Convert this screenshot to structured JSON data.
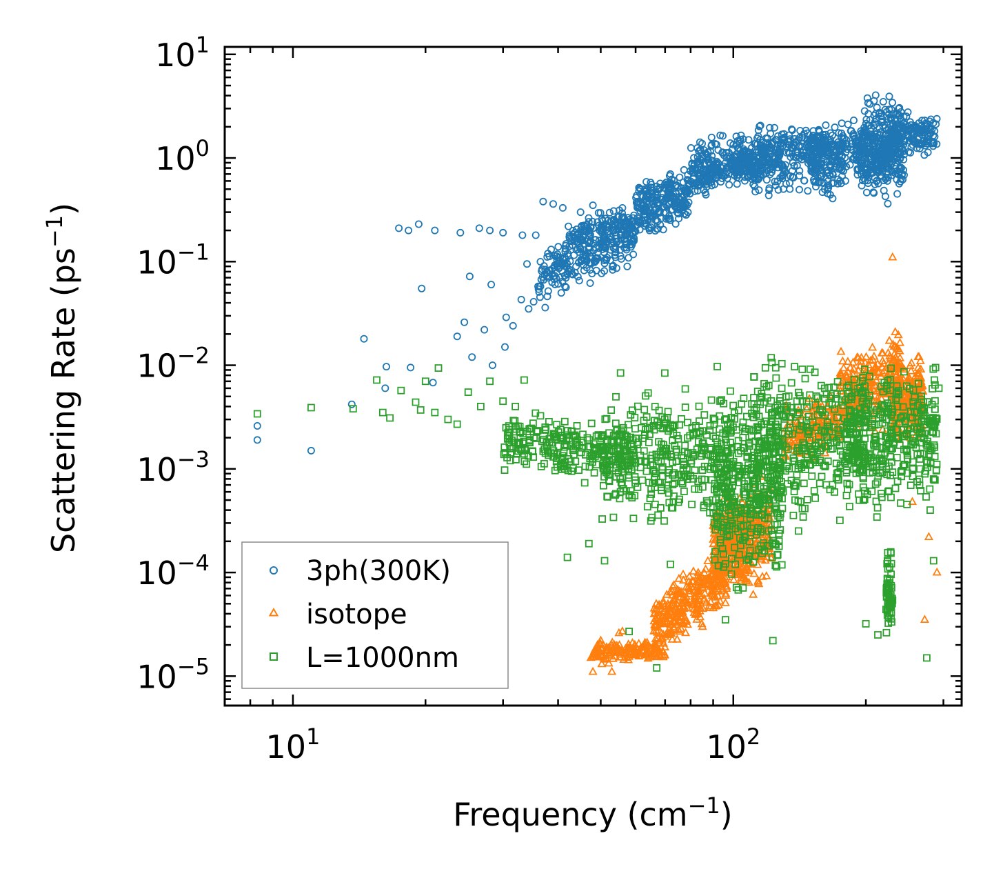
{
  "chart_data": {
    "type": "scatter",
    "title": "",
    "xlabel": "Frequency (cm",
    "xlabel_sup": "−1",
    "xlabel_end": ")",
    "ylabel": "Scattering Rate (ps",
    "ylabel_sup": "−1",
    "ylabel_end": ")",
    "xscale": "log",
    "yscale": "log",
    "xlim": [
      7.0,
      330.0
    ],
    "ylim": [
      5.2e-06,
      11.8
    ],
    "x_ticks": [
      {
        "base": "10",
        "exp": "1",
        "value": 10
      },
      {
        "base": "10",
        "exp": "2",
        "value": 100
      }
    ],
    "y_ticks": [
      {
        "base": "10",
        "exp": "1",
        "value": 10
      },
      {
        "base": "10",
        "exp": "0",
        "value": 1
      },
      {
        "base": "10",
        "exp": "−1",
        "value": 0.1
      },
      {
        "base": "10",
        "exp": "−2",
        "value": 0.01
      },
      {
        "base": "10",
        "exp": "−3",
        "value": 0.001
      },
      {
        "base": "10",
        "exp": "−4",
        "value": 0.0001
      },
      {
        "base": "10",
        "exp": "−5",
        "value": 1e-05
      }
    ],
    "legend_position": "bottom-left",
    "series": [
      {
        "name": "3ph(300K)",
        "marker": "circle",
        "color": "#1f77b4",
        "points": [
          [
            8.3,
            0.0019
          ],
          [
            8.3,
            0.0026
          ],
          [
            11.0,
            0.0015
          ],
          [
            13.6,
            0.0042
          ],
          [
            16.2,
            0.006
          ],
          [
            14.5,
            0.018
          ],
          [
            16.3,
            0.0097
          ],
          [
            18.5,
            0.0095
          ],
          [
            20.8,
            0.0068
          ],
          [
            23.6,
            0.019
          ],
          [
            24.5,
            0.026
          ],
          [
            27.2,
            0.022
          ],
          [
            28.4,
            0.01
          ],
          [
            30.3,
            0.015
          ],
          [
            25.5,
            0.012
          ],
          [
            17.4,
            0.21
          ],
          [
            18.3,
            0.2
          ],
          [
            19.3,
            0.23
          ],
          [
            21.0,
            0.2
          ],
          [
            24.0,
            0.19
          ],
          [
            26.5,
            0.21
          ],
          [
            28.0,
            0.2
          ],
          [
            30.0,
            0.19
          ],
          [
            33.2,
            0.18
          ],
          [
            35.6,
            0.18
          ],
          [
            19.6,
            0.055
          ],
          [
            25.2,
            0.072
          ],
          [
            28.2,
            0.06
          ],
          [
            31.6,
            0.024
          ],
          [
            30.5,
            0.029
          ],
          [
            34.3,
            0.035
          ],
          [
            35.2,
            0.041
          ],
          [
            34.0,
            0.095
          ],
          [
            33.0,
            0.043
          ],
          [
            37.4,
            0.036
          ],
          [
            38.0,
            0.052
          ],
          [
            40.0,
            0.061
          ],
          [
            42.0,
            0.075
          ],
          [
            44.0,
            0.13
          ],
          [
            46.0,
            0.16
          ],
          [
            37.0,
            0.38
          ],
          [
            39.0,
            0.36
          ],
          [
            41.0,
            0.33
          ],
          [
            45.0,
            0.3
          ],
          [
            48.0,
            0.35
          ]
        ],
        "clusters": [
          {
            "x": [
              36,
              60
            ],
            "y": [
              0.03,
              0.4
            ],
            "trend": 1.6,
            "n": 220
          },
          {
            "x": [
              42,
              80
            ],
            "y": [
              0.1,
              0.6
            ],
            "trend": 1.2,
            "n": 260
          },
          {
            "x": [
              60,
              120
            ],
            "y": [
              0.25,
              1.5
            ],
            "trend": 1.4,
            "n": 280
          },
          {
            "x": [
              80,
              160
            ],
            "y": [
              0.3,
              4.0
            ],
            "trend": 0.6,
            "n": 260
          },
          {
            "x": [
              100,
              180
            ],
            "y": [
              0.3,
              2.5
            ],
            "trend": 0.0,
            "n": 220
          },
          {
            "x": [
              150,
              240
            ],
            "y": [
              0.25,
              5.5
            ],
            "trend": 0.4,
            "n": 320
          },
          {
            "x": [
              195,
              245
            ],
            "y": [
              0.3,
              6.0
            ],
            "trend": 0.0,
            "n": 260
          },
          {
            "x": [
              230,
              290
            ],
            "y": [
              0.9,
              3.0
            ],
            "trend": 0.0,
            "n": 120
          }
        ]
      },
      {
        "name": "isotope",
        "marker": "triangle",
        "color": "#ff7f0e",
        "points": [
          [
            48.0,
            1.1e-05
          ],
          [
            53.0,
            1.1e-05
          ],
          [
            47.5,
            1.5e-05
          ],
          [
            50.0,
            2.2e-05
          ],
          [
            55.0,
            2.6e-05
          ],
          [
            56.0,
            2.7e-05
          ],
          [
            230.0,
            0.11
          ],
          [
            255.0,
            0.00048
          ],
          [
            272.0,
            3.5e-05
          ],
          [
            290.0,
            0.0001
          ],
          [
            278.0,
            0.00022
          ]
        ],
        "clusters": [
          {
            "x": [
              48,
              70
            ],
            "y": [
              1e-05,
              3e-05
            ],
            "trend": 0.3,
            "n": 160
          },
          {
            "x": [
              66,
              97
            ],
            "y": [
              1e-05,
              0.0003
            ],
            "trend": 3.2,
            "n": 320
          },
          {
            "x": [
              90,
              105
            ],
            "y": [
              2e-05,
              0.002
            ],
            "trend": 3.5,
            "n": 220
          },
          {
            "x": [
              100,
              122
            ],
            "y": [
              1.5e-05,
              0.003
            ],
            "trend": 2.5,
            "n": 220
          },
          {
            "x": [
              130,
              175
            ],
            "y": [
              0.0005,
              0.012
            ],
            "trend": 1.8,
            "n": 160
          },
          {
            "x": [
              175,
              240
            ],
            "y": [
              0.0008,
              0.05
            ],
            "trend": 1.5,
            "n": 260
          },
          {
            "x": [
              230,
              270
            ],
            "y": [
              0.0005,
              0.04
            ],
            "trend": 0.4,
            "n": 220
          }
        ]
      },
      {
        "name": "L=1000nm",
        "marker": "square",
        "color": "#2ca02c",
        "points": [
          [
            8.3,
            0.0034
          ],
          [
            11.0,
            0.0039
          ],
          [
            13.7,
            0.0038
          ],
          [
            15.5,
            0.0072
          ],
          [
            16.0,
            0.0035
          ],
          [
            16.6,
            0.0031
          ],
          [
            17.6,
            0.0057
          ],
          [
            19.0,
            0.0044
          ],
          [
            19.5,
            0.0037
          ],
          [
            20.0,
            0.007
          ],
          [
            21.4,
            0.0094
          ],
          [
            21.0,
            0.0035
          ],
          [
            22.5,
            0.003
          ],
          [
            23.6,
            0.0027
          ],
          [
            25.0,
            0.0055
          ],
          [
            26.7,
            0.004
          ],
          [
            28.0,
            0.007
          ],
          [
            30.0,
            0.0045
          ],
          [
            32.0,
            0.004
          ],
          [
            33.5,
            0.0072
          ],
          [
            42.0,
            0.00014
          ],
          [
            47.0,
            0.00019
          ],
          [
            51.0,
            0.00013
          ],
          [
            58.0,
            2.7e-05
          ],
          [
            67.0,
            1.2e-05
          ],
          [
            72.0,
            0.00012
          ],
          [
            96.0,
            3.5e-05
          ],
          [
            123.0,
            2.2e-05
          ],
          [
            200.0,
            3.2e-05
          ],
          [
            213.0,
            2.5e-05
          ],
          [
            275.0,
            1.5e-05
          ],
          [
            285.0,
            0.00013
          ],
          [
            288.0,
            0.0095
          ],
          [
            293.0,
            0.006
          ],
          [
            287.0,
            0.00078
          ],
          [
            280.0,
            0.0004
          ]
        ],
        "clusters": [
          {
            "x": [
              30,
              60
            ],
            "y": [
              0.0003,
              0.009
            ],
            "trend": -0.4,
            "n": 260
          },
          {
            "x": [
              50,
              100
            ],
            "y": [
              0.0002,
              0.009
            ],
            "trend": 0.0,
            "n": 360
          },
          {
            "x": [
              90,
              130
            ],
            "y": [
              4e-05,
              0.013
            ],
            "trend": 0.0,
            "n": 360
          },
          {
            "x": [
              110,
              200
            ],
            "y": [
              0.0002,
              0.016
            ],
            "trend": 0.0,
            "n": 380
          },
          {
            "x": [
              180,
              290
            ],
            "y": [
              0.0003,
              0.015
            ],
            "trend": 0.0,
            "n": 360
          },
          {
            "x": [
              222,
              230
            ],
            "y": [
              2e-05,
              0.0002
            ],
            "trend": 0.0,
            "n": 60
          }
        ]
      }
    ]
  }
}
